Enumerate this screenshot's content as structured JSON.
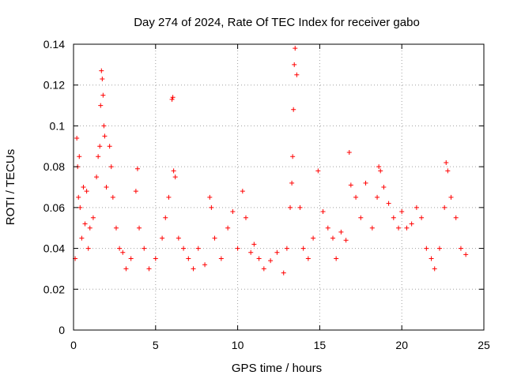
{
  "chart_data": {
    "type": "scatter",
    "title": "Day 274 of 2024, Rate Of TEC Index for receiver gabo",
    "xlabel": "GPS time / hours",
    "ylabel": "ROTI / TECUs",
    "xlim": [
      0,
      25
    ],
    "ylim": [
      0,
      0.14
    ],
    "x_ticks": [
      "0",
      "5",
      "10",
      "15",
      "20",
      "25"
    ],
    "x_tick_values": [
      0,
      5,
      10,
      15,
      20,
      25
    ],
    "y_ticks": [
      "0",
      "0.02",
      "0.04",
      "0.06",
      "0.08",
      "0.1",
      "0.12",
      "0.14"
    ],
    "y_tick_values": [
      0,
      0.02,
      0.04,
      0.06,
      0.08,
      0.1,
      0.12,
      0.14
    ],
    "grid": true,
    "marker": "plus",
    "color": "#ff0000",
    "series": [
      {
        "x": [
          0.1,
          0.2,
          0.25,
          0.3,
          0.35,
          0.4,
          0.5,
          0.6,
          0.7,
          0.8,
          0.9,
          1.0,
          1.2,
          1.4,
          1.5,
          1.6,
          1.65,
          1.7,
          1.75,
          1.8,
          1.85,
          1.9,
          2.0,
          2.2,
          2.3,
          2.4,
          2.6,
          2.8,
          3.0,
          3.2,
          3.5,
          3.8,
          3.9,
          4.0,
          4.3,
          4.6,
          5.0,
          5.4,
          5.6,
          5.8,
          6.0,
          6.05,
          6.1,
          6.2,
          6.4,
          6.7,
          7.0,
          7.3,
          7.6,
          8.0,
          8.3,
          8.4,
          8.6,
          9.0,
          9.4,
          9.7,
          10.0,
          10.3,
          10.5,
          10.8,
          11.0,
          11.3,
          11.6,
          12.0,
          12.4,
          12.8,
          13.0,
          13.2,
          13.3,
          13.35,
          13.4,
          13.45,
          13.5,
          13.6,
          13.8,
          14.0,
          14.3,
          14.6,
          14.9,
          15.2,
          15.5,
          15.8,
          16.0,
          16.3,
          16.6,
          16.8,
          16.9,
          17.2,
          17.5,
          17.8,
          18.2,
          18.5,
          18.6,
          18.7,
          18.9,
          19.2,
          19.5,
          19.8,
          20.0,
          20.3,
          20.6,
          20.9,
          21.2,
          21.5,
          21.8,
          22.0,
          22.3,
          22.6,
          22.7,
          22.8,
          23.0,
          23.3,
          23.6,
          23.9
        ],
        "y": [
          0.035,
          0.094,
          0.08,
          0.065,
          0.085,
          0.06,
          0.045,
          0.07,
          0.052,
          0.068,
          0.04,
          0.05,
          0.055,
          0.075,
          0.085,
          0.09,
          0.11,
          0.127,
          0.123,
          0.115,
          0.1,
          0.095,
          0.07,
          0.09,
          0.08,
          0.065,
          0.05,
          0.04,
          0.038,
          0.03,
          0.035,
          0.068,
          0.079,
          0.05,
          0.04,
          0.03,
          0.035,
          0.045,
          0.055,
          0.065,
          0.113,
          0.114,
          0.078,
          0.075,
          0.045,
          0.04,
          0.035,
          0.03,
          0.04,
          0.032,
          0.065,
          0.06,
          0.045,
          0.035,
          0.05,
          0.058,
          0.04,
          0.068,
          0.055,
          0.038,
          0.042,
          0.035,
          0.03,
          0.034,
          0.038,
          0.028,
          0.04,
          0.06,
          0.072,
          0.085,
          0.108,
          0.13,
          0.138,
          0.125,
          0.06,
          0.04,
          0.035,
          0.045,
          0.078,
          0.058,
          0.05,
          0.045,
          0.035,
          0.048,
          0.044,
          0.087,
          0.071,
          0.065,
          0.055,
          0.072,
          0.05,
          0.065,
          0.08,
          0.078,
          0.07,
          0.062,
          0.055,
          0.05,
          0.058,
          0.05,
          0.052,
          0.06,
          0.055,
          0.04,
          0.035,
          0.03,
          0.04,
          0.06,
          0.082,
          0.078,
          0.065,
          0.055,
          0.04,
          0.037
        ]
      }
    ]
  }
}
